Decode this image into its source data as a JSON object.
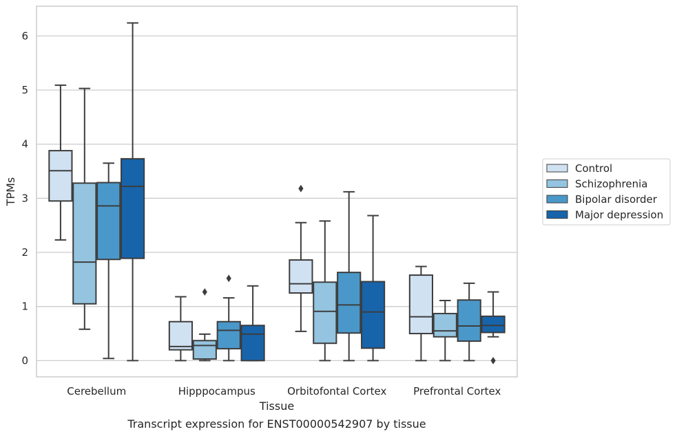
{
  "caption": "Transcript expression for ENST00000542907 by tissue",
  "chart_data": {
    "type": "box",
    "xlabel": "Tissue",
    "ylabel": "TPMs",
    "ylim": [
      -0.3,
      6.55
    ],
    "yticks": [
      0,
      1,
      2,
      3,
      4,
      5,
      6
    ],
    "grid": true,
    "legend_position": "right",
    "categories": [
      "Cerebellum",
      "Hipppocampus",
      "Orbitofontal Cortex",
      "Prefrontal Cortex"
    ],
    "series": [
      {
        "name": "Control",
        "color": "#d0e1f2",
        "boxes": [
          {
            "whislo": 2.23,
            "q1": 2.95,
            "med": 3.51,
            "q3": 3.88,
            "whishi": 5.09,
            "fliers": []
          },
          {
            "whislo": 0.0,
            "q1": 0.2,
            "med": 0.26,
            "q3": 0.72,
            "whishi": 1.18,
            "fliers": []
          },
          {
            "whislo": 0.54,
            "q1": 1.25,
            "med": 1.42,
            "q3": 1.86,
            "whishi": 2.55,
            "fliers": [
              3.18
            ]
          },
          {
            "whislo": 0.0,
            "q1": 0.5,
            "med": 0.81,
            "q3": 1.58,
            "whishi": 1.74,
            "fliers": []
          }
        ]
      },
      {
        "name": "Schizophrenia",
        "color": "#94c4df",
        "boxes": [
          {
            "whislo": 0.58,
            "q1": 1.05,
            "med": 1.82,
            "q3": 3.28,
            "whishi": 5.03,
            "fliers": []
          },
          {
            "whislo": 0.0,
            "q1": 0.03,
            "med": 0.28,
            "q3": 0.37,
            "whishi": 0.49,
            "fliers": [
              1.27
            ]
          },
          {
            "whislo": 0.0,
            "q1": 0.32,
            "med": 0.91,
            "q3": 1.45,
            "whishi": 2.58,
            "fliers": []
          },
          {
            "whislo": 0.0,
            "q1": 0.44,
            "med": 0.55,
            "q3": 0.87,
            "whishi": 1.11,
            "fliers": []
          }
        ]
      },
      {
        "name": "Bipolar disorder",
        "color": "#4a98c9",
        "boxes": [
          {
            "whislo": 0.04,
            "q1": 1.87,
            "med": 2.86,
            "q3": 3.29,
            "whishi": 3.65,
            "fliers": []
          },
          {
            "whislo": 0.0,
            "q1": 0.22,
            "med": 0.56,
            "q3": 0.72,
            "whishi": 1.16,
            "fliers": [
              1.52
            ]
          },
          {
            "whislo": 0.0,
            "q1": 0.51,
            "med": 1.03,
            "q3": 1.63,
            "whishi": 3.12,
            "fliers": []
          },
          {
            "whislo": 0.0,
            "q1": 0.36,
            "med": 0.64,
            "q3": 1.12,
            "whishi": 1.43,
            "fliers": []
          }
        ]
      },
      {
        "name": "Major depression",
        "color": "#1764ab",
        "boxes": [
          {
            "whislo": 0.0,
            "q1": 1.89,
            "med": 3.22,
            "q3": 3.73,
            "whishi": 6.24,
            "fliers": []
          },
          {
            "whislo": 0.0,
            "q1": 0.0,
            "med": 0.49,
            "q3": 0.65,
            "whishi": 1.38,
            "fliers": []
          },
          {
            "whislo": 0.0,
            "q1": 0.23,
            "med": 0.9,
            "q3": 1.46,
            "whishi": 2.68,
            "fliers": []
          },
          {
            "whislo": 0.44,
            "q1": 0.52,
            "med": 0.65,
            "q3": 0.82,
            "whishi": 1.27,
            "fliers": [
              0.0
            ]
          }
        ]
      }
    ]
  }
}
